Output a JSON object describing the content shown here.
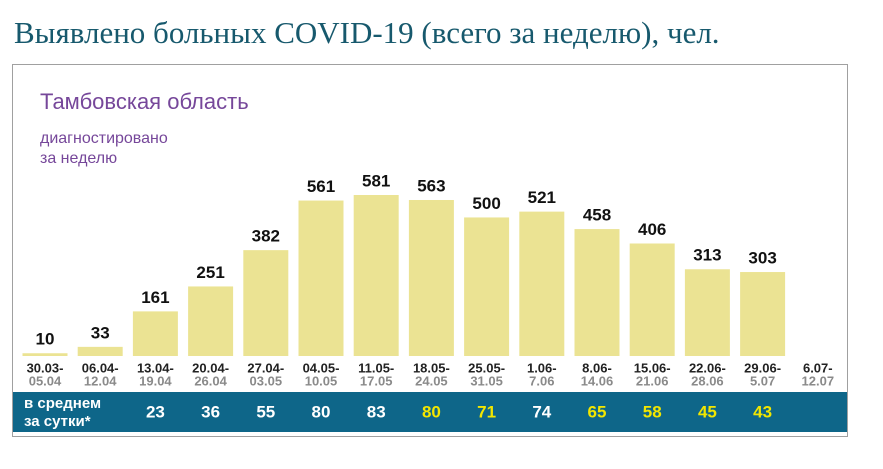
{
  "chart_data": {
    "type": "bar",
    "title": "Выявлено больных COVID-19 (всего за неделю), чел.",
    "subtitle": "Тамбовская область",
    "value_caption": [
      "диагностировано",
      "за неделю"
    ],
    "categories": [
      {
        "start": "30.03-",
        "end": "05.04"
      },
      {
        "start": "06.04-",
        "end": "12.04"
      },
      {
        "start": "13.04-",
        "end": "19.04"
      },
      {
        "start": "20.04-",
        "end": "26.04"
      },
      {
        "start": "27.04-",
        "end": "03.05"
      },
      {
        "start": "04.05-",
        "end": "10.05"
      },
      {
        "start": "11.05-",
        "end": "17.05"
      },
      {
        "start": "18.05-",
        "end": "24.05"
      },
      {
        "start": "25.05-",
        "end": "31.05"
      },
      {
        "start": "1.06-",
        "end": "7.06"
      },
      {
        "start": "8.06-",
        "end": "14.06"
      },
      {
        "start": "15.06-",
        "end": "21.06"
      },
      {
        "start": "22.06-",
        "end": "28.06"
      },
      {
        "start": "29.06-",
        "end": "5.07"
      },
      {
        "start": "6.07-",
        "end": "12.07"
      }
    ],
    "values": [
      10,
      33,
      161,
      251,
      382,
      561,
      581,
      563,
      500,
      521,
      458,
      406,
      313,
      303,
      null
    ],
    "color": "#ebe393",
    "daily_average_label": [
      "в среднем",
      "за сутки*"
    ],
    "daily_average": [
      null,
      null,
      23,
      36,
      55,
      80,
      83,
      80,
      71,
      74,
      65,
      58,
      45,
      43,
      null
    ],
    "daily_average_colors": [
      null,
      null,
      "#ffffff",
      "#ffffff",
      "#ffffff",
      "#ffffff",
      "#ffffff",
      "#f2e600",
      "#f2e600",
      "#ffffff",
      "#f2e600",
      "#f2e600",
      "#f2e600",
      "#f2e600",
      null
    ],
    "table_color": "#0e6689"
  }
}
